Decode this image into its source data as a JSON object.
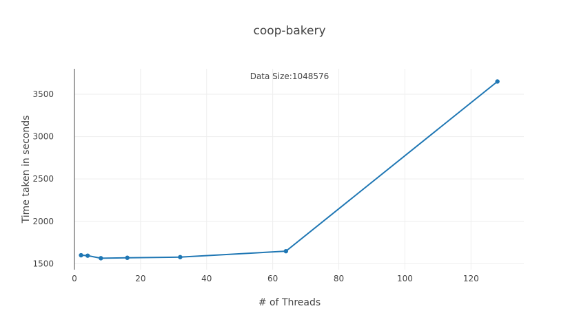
{
  "chart_data": {
    "type": "line",
    "title": "coop-bakery",
    "xlabel": "# of Threads",
    "ylabel": "Time taken in seconds",
    "annotation": "Data Size:1048576",
    "xlim": [
      0,
      136
    ],
    "ylim": [
      1430,
      3800
    ],
    "xticks": [
      0,
      20,
      40,
      60,
      80,
      100,
      120
    ],
    "yticks": [
      1500,
      2000,
      2500,
      3000,
      3500
    ],
    "grid": true,
    "legend": "none",
    "series": [
      {
        "x": [
          2,
          4,
          8,
          16,
          32,
          64,
          128
        ],
        "y": [
          1600,
          1595,
          1565,
          1570,
          1578,
          1648,
          3650
        ],
        "color": "#1f77b4"
      }
    ]
  }
}
